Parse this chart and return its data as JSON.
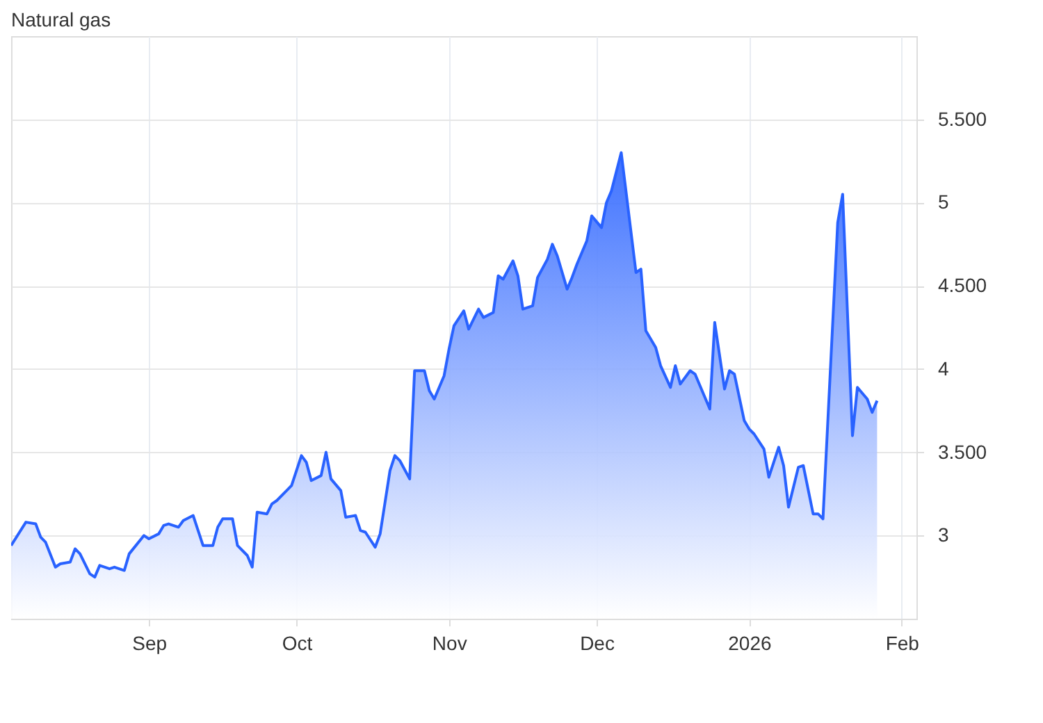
{
  "chart_data": {
    "type": "area",
    "title": "Natural gas",
    "x": [
      "2025-08-04",
      "2025-08-07",
      "2025-08-09",
      "2025-08-10",
      "2025-08-11",
      "2025-08-13",
      "2025-08-14",
      "2025-08-16",
      "2025-08-17",
      "2025-08-18",
      "2025-08-20",
      "2025-08-21",
      "2025-08-22",
      "2025-08-24",
      "2025-08-25",
      "2025-08-27",
      "2025-08-28",
      "2025-08-31",
      "2025-09-01",
      "2025-09-03",
      "2025-09-04",
      "2025-09-05",
      "2025-09-07",
      "2025-09-08",
      "2025-09-10",
      "2025-09-11",
      "2025-09-12",
      "2025-09-14",
      "2025-09-15",
      "2025-09-16",
      "2025-09-18",
      "2025-09-19",
      "2025-09-21",
      "2025-09-22",
      "2025-09-23",
      "2025-09-25",
      "2025-09-26",
      "2025-09-27",
      "2025-09-29",
      "2025-09-30",
      "2025-10-02",
      "2025-10-03",
      "2025-10-04",
      "2025-10-06",
      "2025-10-07",
      "2025-10-08",
      "2025-10-10",
      "2025-10-11",
      "2025-10-13",
      "2025-10-14",
      "2025-10-15",
      "2025-10-17",
      "2025-10-18",
      "2025-10-20",
      "2025-10-21",
      "2025-10-22",
      "2025-10-24",
      "2025-10-25",
      "2025-10-27",
      "2025-10-28",
      "2025-10-29",
      "2025-10-31",
      "2025-11-01",
      "2025-11-02",
      "2025-11-04",
      "2025-11-05",
      "2025-11-07",
      "2025-11-08",
      "2025-11-10",
      "2025-11-11",
      "2025-11-12",
      "2025-11-14",
      "2025-11-15",
      "2025-11-16",
      "2025-11-18",
      "2025-11-19",
      "2025-11-21",
      "2025-11-22",
      "2025-11-23",
      "2025-11-25",
      "2025-11-26",
      "2025-11-27",
      "2025-11-29",
      "2025-11-30",
      "2025-12-02",
      "2025-12-03",
      "2025-12-04",
      "2025-12-06",
      "2025-12-09",
      "2025-12-10",
      "2025-12-11",
      "2025-12-13",
      "2025-12-14",
      "2025-12-16",
      "2025-12-17",
      "2025-12-18",
      "2025-12-20",
      "2025-12-21",
      "2025-12-22",
      "2025-12-24",
      "2025-12-25",
      "2025-12-27",
      "2025-12-28",
      "2025-12-29",
      "2025-12-31",
      "2026-01-01",
      "2026-01-02",
      "2026-01-04",
      "2026-01-05",
      "2026-01-07",
      "2026-01-08",
      "2026-01-09",
      "2026-01-11",
      "2026-01-12",
      "2026-01-14",
      "2026-01-15",
      "2026-01-16",
      "2026-01-19",
      "2026-01-20",
      "2026-01-22",
      "2026-01-23",
      "2026-01-25",
      "2026-01-26",
      "2026-01-27"
    ],
    "series": [
      {
        "color": "#2962ff",
        "values": [
          2.94,
          3.08,
          3.07,
          2.99,
          2.96,
          2.81,
          2.83,
          2.84,
          2.92,
          2.89,
          2.77,
          2.75,
          2.82,
          2.8,
          2.81,
          2.79,
          2.89,
          3.0,
          2.98,
          3.01,
          3.06,
          3.07,
          3.05,
          3.09,
          3.12,
          3.03,
          2.94,
          2.94,
          3.05,
          3.1,
          3.1,
          2.94,
          2.88,
          2.81,
          3.14,
          3.13,
          3.19,
          3.21,
          3.27,
          3.3,
          3.48,
          3.44,
          3.33,
          3.36,
          3.5,
          3.34,
          3.27,
          3.11,
          3.12,
          3.03,
          3.02,
          2.93,
          3.01,
          3.39,
          3.48,
          3.45,
          3.34,
          3.99,
          3.99,
          3.87,
          3.82,
          3.96,
          4.12,
          4.26,
          4.35,
          4.24,
          4.36,
          4.31,
          4.34,
          4.56,
          4.54,
          4.65,
          4.56,
          4.36,
          4.38,
          4.55,
          4.66,
          4.75,
          4.68,
          4.48,
          4.55,
          4.63,
          4.77,
          4.92,
          4.85,
          5.0,
          5.07,
          5.3,
          4.58,
          4.6,
          4.23,
          4.13,
          4.02,
          3.89,
          4.02,
          3.91,
          3.99,
          3.97,
          3.9,
          3.76,
          4.28,
          3.88,
          3.99,
          3.97,
          3.69,
          3.64,
          3.61,
          3.52,
          3.35,
          3.53,
          3.42,
          3.17,
          3.41,
          3.42,
          3.13,
          3.13,
          3.1,
          4.88,
          5.05,
          3.6,
          3.89,
          3.82,
          3.74,
          3.81
        ]
      }
    ],
    "xlim": [
      "2025-08-04",
      "2026-02-04"
    ],
    "xticks": [
      {
        "value": "2025-09-01",
        "label": "Sep"
      },
      {
        "value": "2025-10-01",
        "label": "Oct"
      },
      {
        "value": "2025-11-01",
        "label": "Nov"
      },
      {
        "value": "2025-12-01",
        "label": "Dec"
      },
      {
        "value": "2026-01-01",
        "label": "2026"
      },
      {
        "value": "2026-02-01",
        "label": "Feb"
      }
    ],
    "ylim": [
      2.5,
      6.0
    ],
    "yticks": [
      3,
      {
        "value": 3.5,
        "label": "3.500"
      },
      4,
      {
        "value": 4.5,
        "label": "4.500"
      },
      5,
      {
        "value": 5.5,
        "label": "5.500"
      }
    ],
    "grid": true
  }
}
